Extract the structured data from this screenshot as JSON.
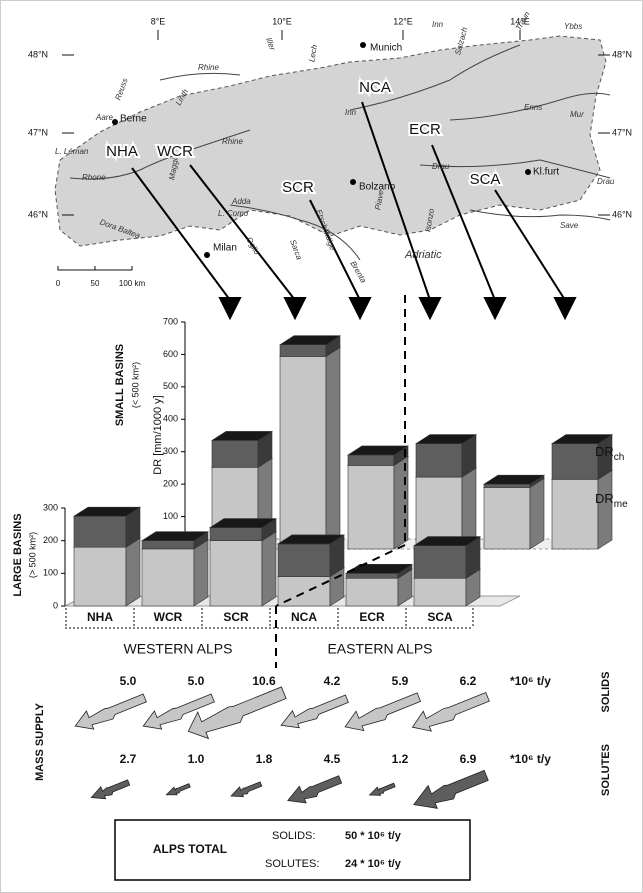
{
  "map": {
    "lat_labels": [
      "48°N",
      "48°N",
      "47°N",
      "47°N",
      "46°N",
      "46°N"
    ],
    "lon_labels": [
      "8°E",
      "10°E",
      "12°E",
      "14°E"
    ],
    "places": [
      "Munich",
      "Berne",
      "Bolzano",
      "Milan",
      "Kl.furt",
      "Adriatic"
    ],
    "rivers": [
      "Rhine",
      "Rhine",
      "Reuss",
      "Linth",
      "Aare",
      "L. Léman",
      "Rhone",
      "Dora Baltea",
      "Maggia",
      "Adda",
      "L. Como",
      "Oglio",
      "Sarca",
      "Etsch/Adige",
      "Brenta",
      "Piave",
      "Isonzo",
      "Drau",
      "Drau",
      "Save",
      "Mur",
      "Enns",
      "Inn",
      "Inn",
      "Iller",
      "Lech",
      "Salzach",
      "Traun",
      "Ybbs"
    ],
    "regions": [
      "NHA",
      "WCR",
      "SCR",
      "NCA",
      "ECR",
      "SCA"
    ],
    "scale": [
      "0",
      "50",
      "100 km"
    ]
  },
  "chart_data": [
    {
      "type": "bar",
      "stacked": true,
      "title": "SMALL BASINS",
      "subtitle": "(< 500 km²)",
      "y_label": "DR [mm/1000 y]",
      "ylim": [
        0,
        700
      ],
      "yticks": [
        0,
        100,
        200,
        300,
        400,
        500,
        600,
        700
      ],
      "series": [
        {
          "name": "DR",
          "subscript": "me",
          "color": "#c6c6c6",
          "values": [
            252,
            594,
            258,
            222,
            190,
            215
          ]
        },
        {
          "name": "DR",
          "subscript": "ch",
          "color": "#5e5e5e",
          "values": [
            83,
            36,
            32,
            103,
            10,
            110
          ]
        }
      ]
    },
    {
      "type": "bar",
      "stacked": true,
      "title": "LARGE BASINS",
      "subtitle": "(> 500 km²)",
      "categories": [
        "NHA",
        "WCR",
        "SCR",
        "NCA",
        "ECR",
        "SCA"
      ],
      "groups": [
        "WESTERN ALPS",
        "EASTERN ALPS"
      ],
      "ylim": [
        0,
        300
      ],
      "yticks": [
        0,
        100,
        200,
        300
      ],
      "series": [
        {
          "name": "DR",
          "subscript": "me",
          "color": "#c6c6c6",
          "values": [
            180,
            175,
            200,
            90,
            85,
            85
          ]
        },
        {
          "name": "DR",
          "subscript": "ch",
          "color": "#5e5e5e",
          "values": [
            95,
            25,
            40,
            100,
            15,
            100
          ]
        }
      ]
    }
  ],
  "mass_supply": {
    "title": "MASS SUPPLY",
    "rows": [
      {
        "label": "SOLIDS",
        "unit": "*10⁶ t/y",
        "color": "#c6c6c6",
        "values": [
          5.0,
          5.0,
          10.6,
          4.2,
          5.9,
          6.2
        ],
        "value_labels": [
          "5.0",
          "5.0",
          "10.6",
          "4.2",
          "5.9",
          "6.2"
        ]
      },
      {
        "label": "SOLUTES",
        "unit": "*10⁶ t/y",
        "color": "#5e5e5e",
        "values": [
          2.7,
          1.0,
          1.8,
          4.5,
          1.2,
          6.9
        ],
        "value_labels": [
          "2.7",
          "1.0",
          "1.8",
          "4.5",
          "1.2",
          "6.9"
        ]
      }
    ]
  },
  "total": {
    "title": "ALPS TOTAL",
    "rows": [
      {
        "label": "SOLIDS:",
        "value": "50 * 10⁶ t/y"
      },
      {
        "label": "SOLUTES:",
        "value": "24 * 10⁶ t/y"
      }
    ]
  }
}
